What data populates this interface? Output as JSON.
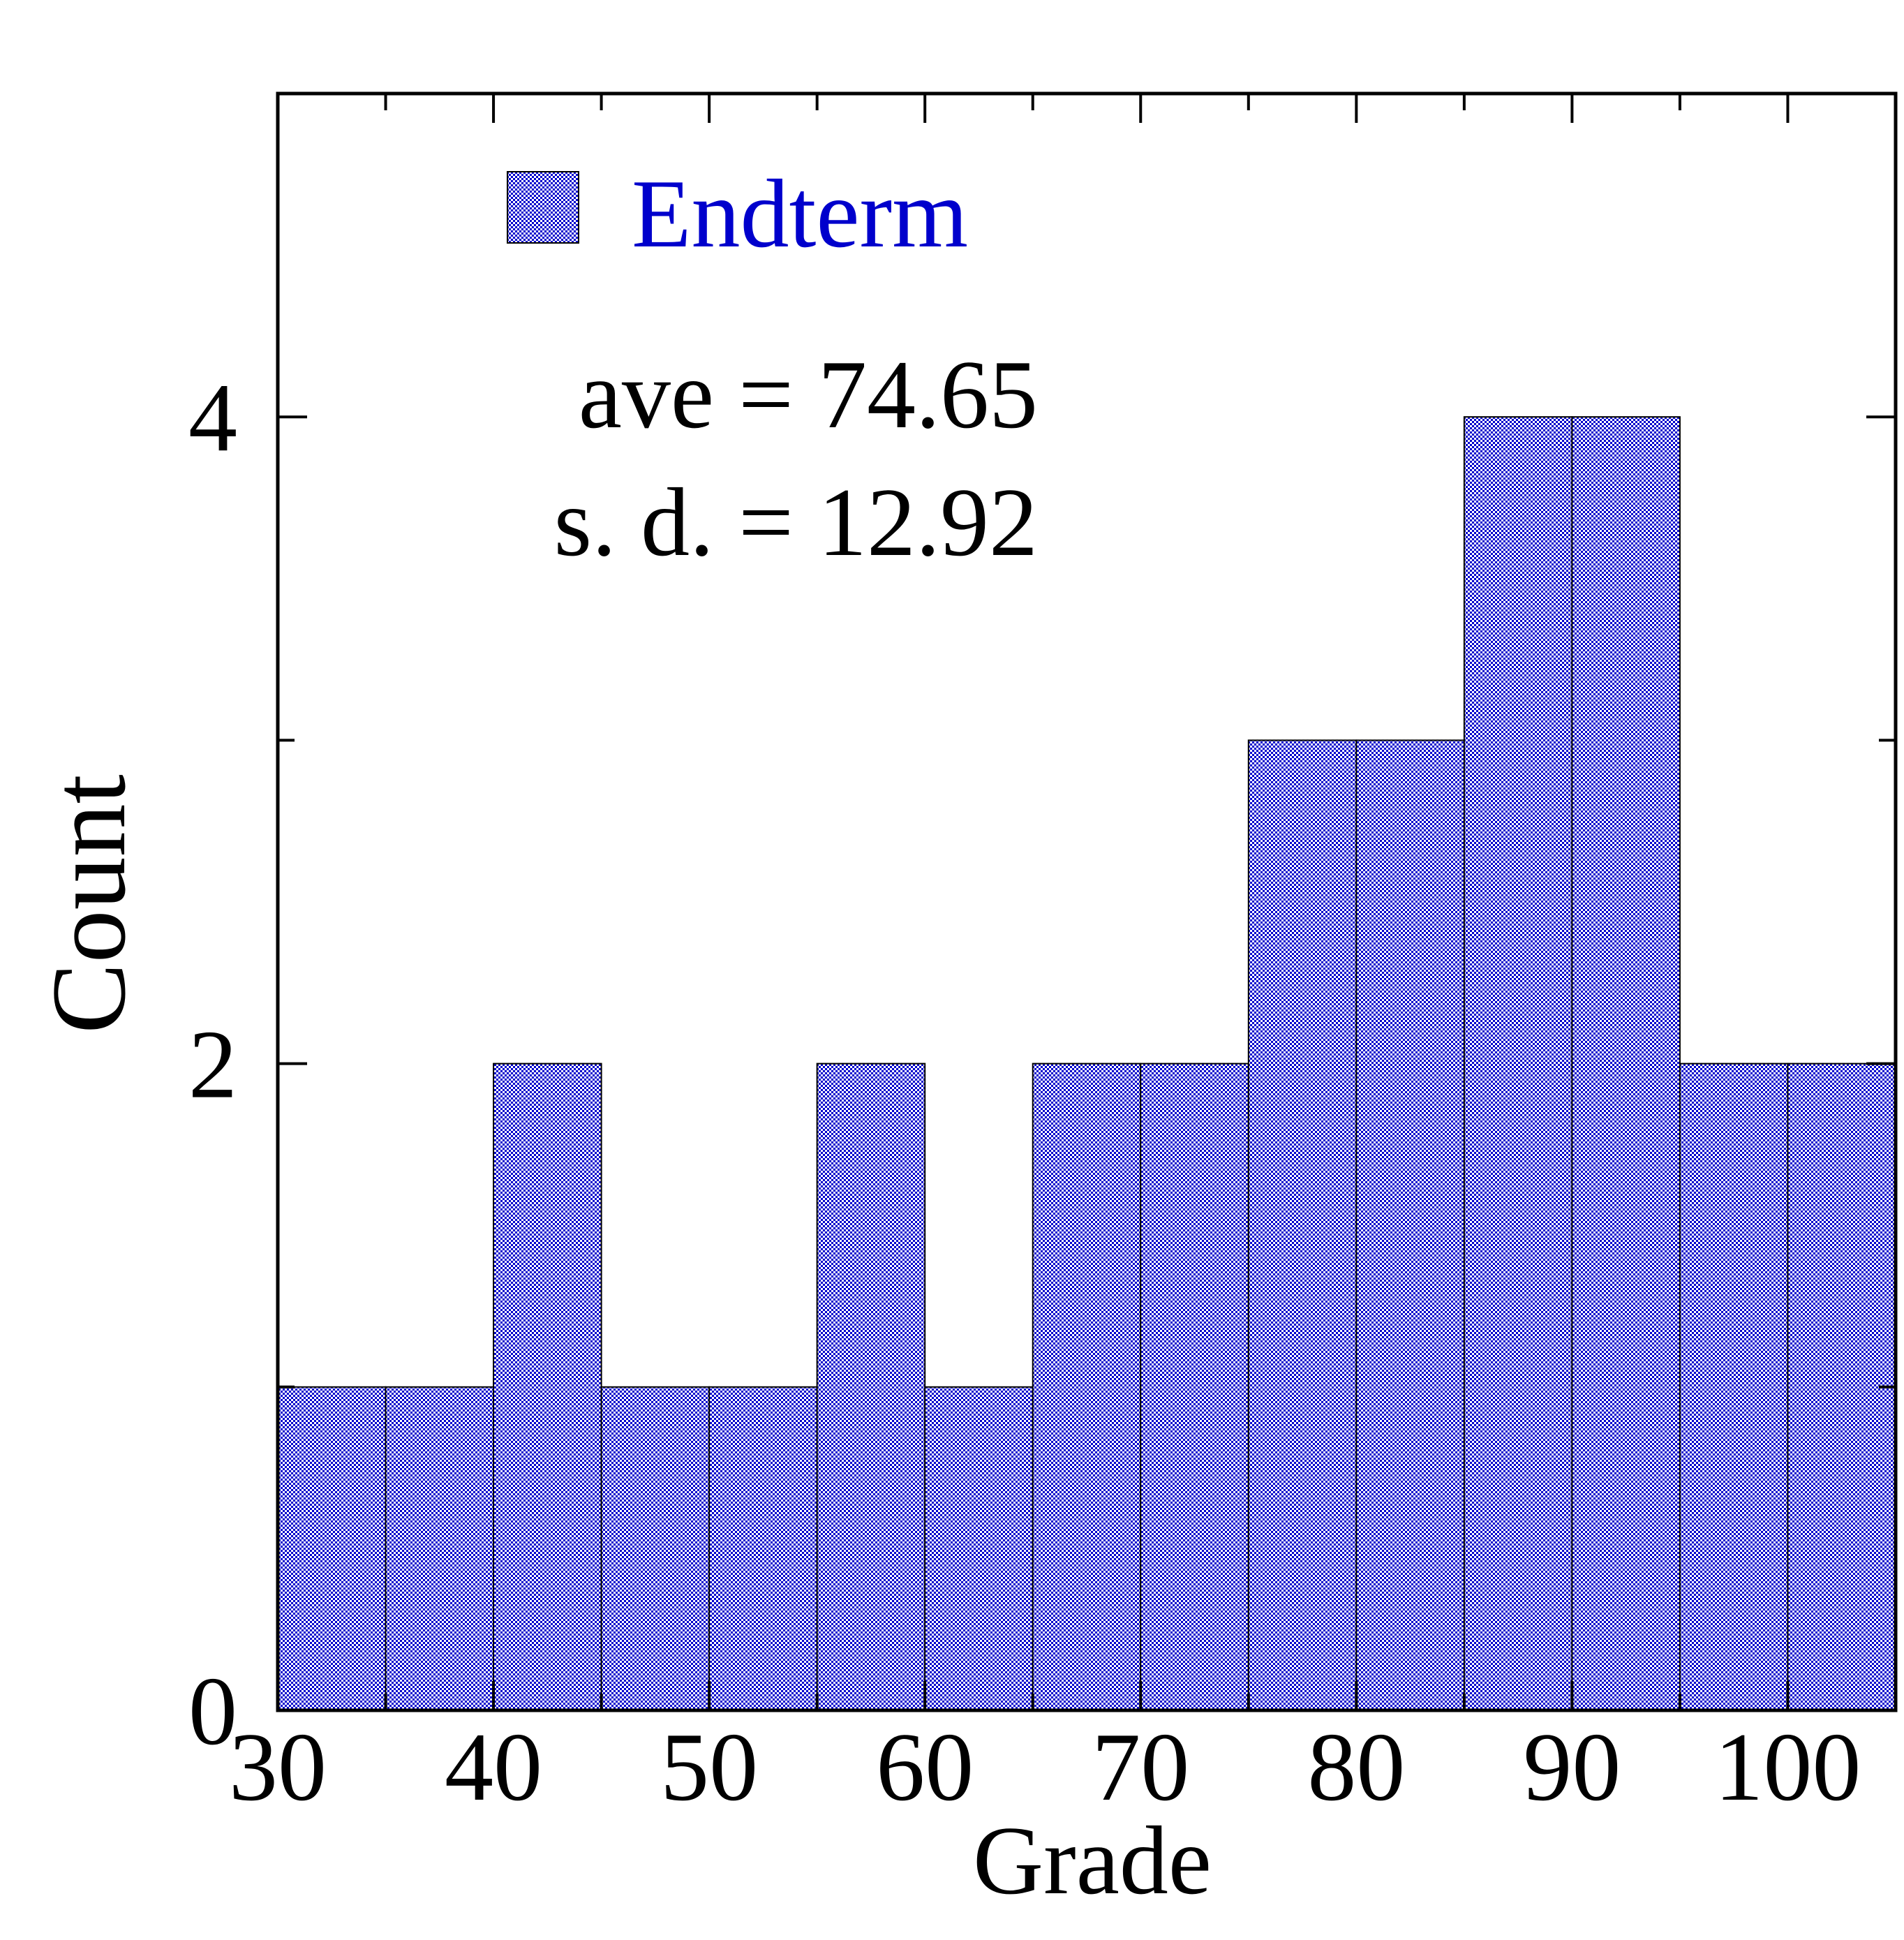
{
  "chart_data": {
    "type": "bar",
    "histogram": true,
    "bin_width": 5,
    "bins": [
      {
        "start": 30,
        "end": 35,
        "count": 1
      },
      {
        "start": 35,
        "end": 40,
        "count": 1
      },
      {
        "start": 40,
        "end": 45,
        "count": 2
      },
      {
        "start": 45,
        "end": 50,
        "count": 1
      },
      {
        "start": 50,
        "end": 55,
        "count": 1
      },
      {
        "start": 55,
        "end": 60,
        "count": 2
      },
      {
        "start": 60,
        "end": 65,
        "count": 1
      },
      {
        "start": 65,
        "end": 70,
        "count": 2
      },
      {
        "start": 70,
        "end": 75,
        "count": 2
      },
      {
        "start": 75,
        "end": 80,
        "count": 3
      },
      {
        "start": 80,
        "end": 85,
        "count": 3
      },
      {
        "start": 85,
        "end": 90,
        "count": 4
      },
      {
        "start": 90,
        "end": 95,
        "count": 4
      },
      {
        "start": 95,
        "end": 100,
        "count": 2
      },
      {
        "start": 100,
        "end": 105,
        "count": 2
      }
    ],
    "series": [
      {
        "name": "Endterm",
        "color": "#0000cc"
      }
    ],
    "xlabel": "Grade",
    "ylabel": "Count",
    "xlim": [
      30,
      105
    ],
    "ylim": [
      0,
      5
    ],
    "x_ticks": [
      "30",
      "40",
      "50",
      "60",
      "70",
      "80",
      "90",
      "100"
    ],
    "y_ticks": [
      "0",
      "2",
      "4"
    ],
    "grid": false,
    "legend": {
      "position": "top-left",
      "label": "Endterm"
    },
    "annotations": {
      "average": "ave = 74.65",
      "sd": "s. d. = 12.92"
    }
  }
}
